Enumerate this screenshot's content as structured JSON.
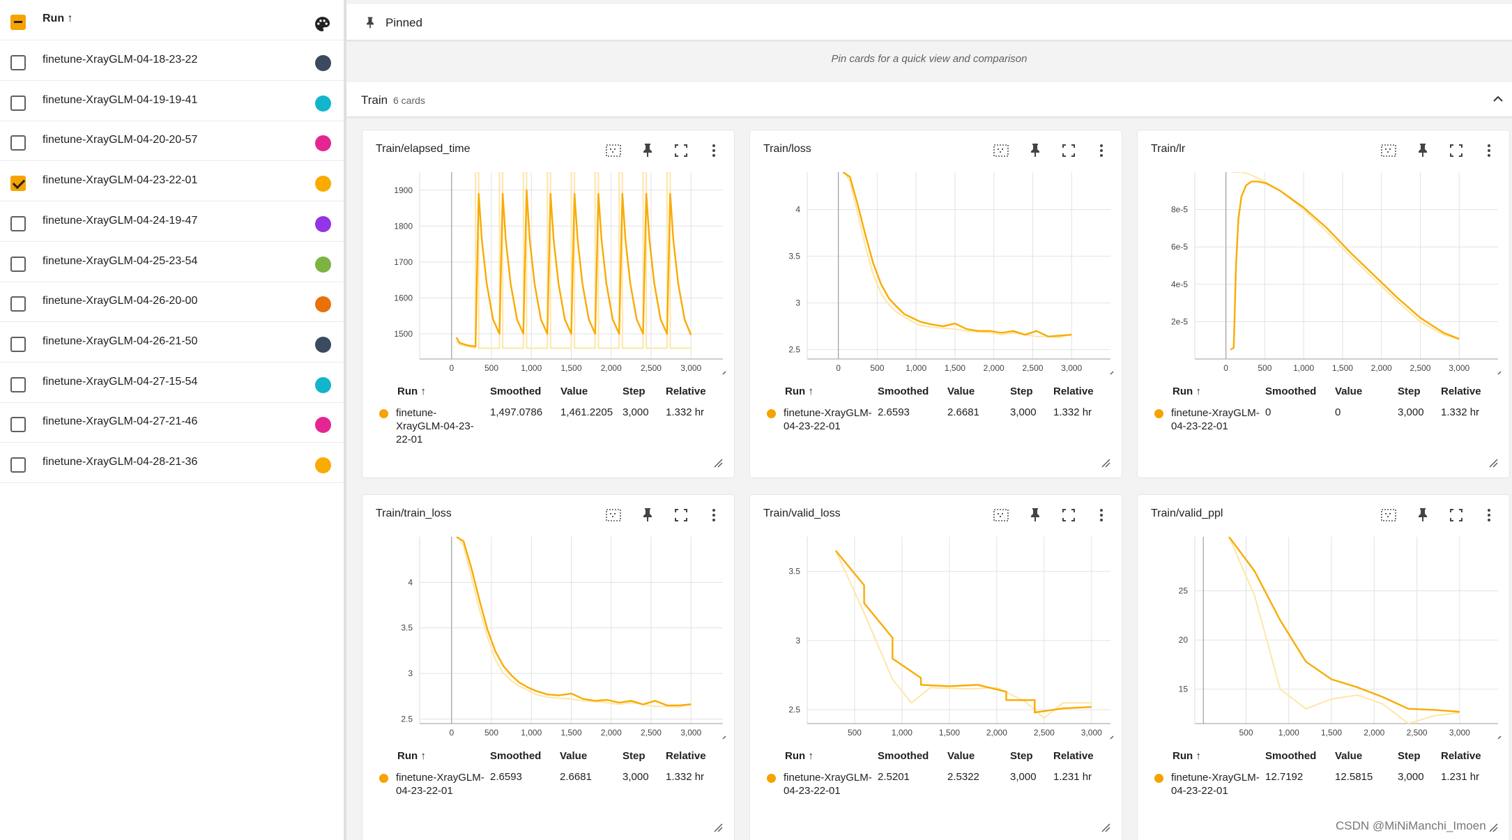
{
  "sidebar": {
    "header": {
      "label": "Run ↑"
    },
    "runs": [
      {
        "name": "finetune-XrayGLM-04-18-23-22",
        "color": "#3b4a5f",
        "checked": false
      },
      {
        "name": "finetune-XrayGLM-04-19-19-41",
        "color": "#12b5cb",
        "checked": false
      },
      {
        "name": "finetune-XrayGLM-04-20-20-57",
        "color": "#e52592",
        "checked": false
      },
      {
        "name": "finetune-XrayGLM-04-23-22-01",
        "color": "#f9ab00",
        "checked": true
      },
      {
        "name": "finetune-XrayGLM-04-24-19-47",
        "color": "#9334e6",
        "checked": false
      },
      {
        "name": "finetune-XrayGLM-04-25-23-54",
        "color": "#7cb342",
        "checked": false
      },
      {
        "name": "finetune-XrayGLM-04-26-20-00",
        "color": "#e8710a",
        "checked": false
      },
      {
        "name": "finetune-XrayGLM-04-26-21-50",
        "color": "#3b4a5f",
        "checked": false
      },
      {
        "name": "finetune-XrayGLM-04-27-15-54",
        "color": "#12b5cb",
        "checked": false
      },
      {
        "name": "finetune-XrayGLM-04-27-21-46",
        "color": "#e52592",
        "checked": false
      },
      {
        "name": "finetune-XrayGLM-04-28-21-36",
        "color": "#f9ab00",
        "checked": false
      }
    ]
  },
  "pinned": {
    "label": "Pinned",
    "hint": "Pin cards for a quick view and comparison"
  },
  "group": {
    "label": "Train",
    "count": "6 cards"
  },
  "table_headers": {
    "run": "Run ↑",
    "smoothed": "Smoothed",
    "value": "Value",
    "step": "Step",
    "relative": "Relative"
  },
  "cards": [
    {
      "title": "Train/elapsed_time",
      "run": "finetune-XrayGLM-04-23-22-01",
      "smoothed": "1,497.0786",
      "value": "1,461.2205",
      "step": "3,000",
      "relative": "1.332 hr"
    },
    {
      "title": "Train/loss",
      "run": "finetune-XrayGLM-04-23-22-01",
      "smoothed": "2.6593",
      "value": "2.6681",
      "step": "3,000",
      "relative": "1.332 hr"
    },
    {
      "title": "Train/lr",
      "run": "finetune-XrayGLM-04-23-22-01",
      "smoothed": "0",
      "value": "0",
      "step": "3,000",
      "relative": "1.332 hr"
    },
    {
      "title": "Train/train_loss",
      "run": "finetune-XrayGLM-04-23-22-01",
      "smoothed": "2.6593",
      "value": "2.6681",
      "step": "3,000",
      "relative": "1.332 hr"
    },
    {
      "title": "Train/valid_loss",
      "run": "finetune-XrayGLM-04-23-22-01",
      "smoothed": "2.5201",
      "value": "2.5322",
      "step": "3,000",
      "relative": "1.231 hr"
    },
    {
      "title": "Train/valid_ppl",
      "run": "finetune-XrayGLM-04-23-22-01",
      "smoothed": "12.7192",
      "value": "12.5815",
      "step": "3,000",
      "relative": "1.231 hr"
    }
  ],
  "chart_data": [
    {
      "type": "line",
      "title": "Train/elapsed_time",
      "xlim": [
        -400,
        3400
      ],
      "ylim": [
        1430,
        1950
      ],
      "xticks": [
        {
          "v": 0,
          "l": "0"
        },
        {
          "v": 500,
          "l": "500"
        },
        {
          "v": 1000,
          "l": "1,000"
        },
        {
          "v": 1500,
          "l": "1,500"
        },
        {
          "v": 2000,
          "l": "2,000"
        },
        {
          "v": 2500,
          "l": "2,500"
        },
        {
          "v": 3000,
          "l": "3,000"
        }
      ],
      "yticks": [
        {
          "v": 1500,
          "l": "1500"
        },
        {
          "v": 1600,
          "l": "1600"
        },
        {
          "v": 1700,
          "l": "1700"
        },
        {
          "v": 1800,
          "l": "1800"
        },
        {
          "v": 1900,
          "l": "1900"
        }
      ],
      "series": [
        {
          "role": "raw",
          "x": [
            60,
            100,
            300,
            300,
            340,
            340,
            600,
            600,
            640,
            640,
            900,
            900,
            940,
            940,
            1200,
            1200,
            1240,
            1240,
            1500,
            1500,
            1540,
            1540,
            1800,
            1800,
            1840,
            1840,
            2100,
            2100,
            2140,
            2140,
            2400,
            2400,
            2440,
            2440,
            2700,
            2700,
            2740,
            2740,
            3000
          ],
          "y": [
            1480,
            1470,
            1460,
            1950,
            1950,
            1460,
            1460,
            1950,
            1950,
            1460,
            1460,
            1950,
            1950,
            1460,
            1460,
            1950,
            1950,
            1460,
            1460,
            1950,
            1950,
            1460,
            1460,
            1950,
            1950,
            1460,
            1460,
            1950,
            1950,
            1460,
            1460,
            1950,
            1950,
            1460,
            1460,
            1950,
            1950,
            1460,
            1460
          ]
        },
        {
          "role": "smoothed",
          "x": [
            60,
            100,
            200,
            300,
            340,
            380,
            440,
            520,
            600,
            640,
            680,
            740,
            820,
            900,
            940,
            980,
            1040,
            1120,
            1200,
            1240,
            1280,
            1340,
            1420,
            1500,
            1540,
            1580,
            1640,
            1720,
            1800,
            1840,
            1880,
            1940,
            2020,
            2100,
            2140,
            2180,
            2240,
            2320,
            2400,
            2440,
            2480,
            2540,
            2620,
            2700,
            2740,
            2780,
            2840,
            2920,
            3000
          ],
          "y": [
            1490,
            1475,
            1468,
            1465,
            1890,
            1760,
            1640,
            1540,
            1500,
            1890,
            1760,
            1640,
            1540,
            1500,
            1900,
            1760,
            1640,
            1540,
            1500,
            1890,
            1760,
            1640,
            1540,
            1500,
            1890,
            1760,
            1640,
            1540,
            1500,
            1890,
            1760,
            1640,
            1540,
            1500,
            1890,
            1760,
            1640,
            1540,
            1500,
            1890,
            1760,
            1640,
            1540,
            1500,
            1890,
            1760,
            1640,
            1540,
            1497
          ]
        }
      ]
    },
    {
      "type": "line",
      "title": "Train/loss",
      "xlim": [
        -400,
        3500
      ],
      "ylim": [
        2.4,
        4.4
      ],
      "xticks": [
        {
          "v": 0,
          "l": "0"
        },
        {
          "v": 500,
          "l": "500"
        },
        {
          "v": 1000,
          "l": "1,000"
        },
        {
          "v": 1500,
          "l": "1,500"
        },
        {
          "v": 2000,
          "l": "2,000"
        },
        {
          "v": 2500,
          "l": "2,500"
        },
        {
          "v": 3000,
          "l": "3,000"
        }
      ],
      "yticks": [
        {
          "v": 2.5,
          "l": "2.5"
        },
        {
          "v": 3,
          "l": "3"
        },
        {
          "v": 3.5,
          "l": "3.5"
        },
        {
          "v": 4,
          "l": "4"
        }
      ],
      "series": [
        {
          "role": "raw",
          "x": [
            80,
            150,
            250,
            350,
            450,
            550,
            650,
            750,
            850,
            950,
            1050,
            1200,
            1350,
            1500,
            1650,
            1800,
            1950,
            2100,
            2250,
            2400,
            2550,
            2700,
            2850,
            3000
          ],
          "y": [
            4.4,
            4.3,
            3.95,
            3.6,
            3.3,
            3.1,
            2.98,
            2.9,
            2.85,
            2.8,
            2.76,
            2.74,
            2.73,
            2.72,
            2.7,
            2.69,
            2.68,
            2.66,
            2.68,
            2.66,
            2.64,
            2.64,
            2.63,
            2.67
          ]
        },
        {
          "role": "smoothed",
          "x": [
            60,
            150,
            250,
            350,
            450,
            550,
            650,
            750,
            850,
            950,
            1050,
            1200,
            1350,
            1500,
            1650,
            1800,
            1950,
            2100,
            2250,
            2400,
            2550,
            2700,
            2850,
            3000
          ],
          "y": [
            4.4,
            4.35,
            4.05,
            3.72,
            3.42,
            3.2,
            3.05,
            2.96,
            2.88,
            2.84,
            2.8,
            2.77,
            2.75,
            2.78,
            2.72,
            2.7,
            2.7,
            2.68,
            2.7,
            2.66,
            2.7,
            2.64,
            2.65,
            2.66
          ]
        }
      ]
    },
    {
      "type": "line",
      "title": "Train/lr",
      "xlim": [
        -400,
        3500
      ],
      "ylim": [
        0,
        0.0001
      ],
      "xticks": [
        {
          "v": 0,
          "l": "0"
        },
        {
          "v": 500,
          "l": "500"
        },
        {
          "v": 1000,
          "l": "1,000"
        },
        {
          "v": 1500,
          "l": "1,500"
        },
        {
          "v": 2000,
          "l": "2,000"
        },
        {
          "v": 2500,
          "l": "2,500"
        },
        {
          "v": 3000,
          "l": "3,000"
        }
      ],
      "yticks": [
        {
          "v": 2e-05,
          "l": "2e-5"
        },
        {
          "v": 4e-05,
          "l": "4e-5"
        },
        {
          "v": 6e-05,
          "l": "6e-5"
        },
        {
          "v": 8e-05,
          "l": "8e-5"
        }
      ],
      "series": [
        {
          "role": "raw",
          "x": [
            80,
            120,
            200,
            300,
            500,
            700,
            1000,
            1300,
            1600,
            1900,
            2200,
            2500,
            2800,
            3000
          ],
          "y": [
            0.0001,
            0.0001,
            0.0001,
            9.9e-05,
            9.5e-05,
            9e-05,
            8e-05,
            6.8e-05,
            5.5e-05,
            4.3e-05,
            3.1e-05,
            2e-05,
            1.3e-05,
            1.05e-05
          ]
        },
        {
          "role": "smoothed",
          "x": [
            60,
            100,
            130,
            160,
            200,
            260,
            330,
            420,
            520,
            700,
            1000,
            1300,
            1600,
            1900,
            2200,
            2500,
            2800,
            3000
          ],
          "y": [
            5e-06,
            6e-06,
            5e-05,
            7.5e-05,
            8.7e-05,
            9.3e-05,
            9.5e-05,
            9.5e-05,
            9.4e-05,
            9e-05,
            8.1e-05,
            7e-05,
            5.7e-05,
            4.5e-05,
            3.3e-05,
            2.2e-05,
            1.4e-05,
            1.08e-05
          ]
        }
      ]
    },
    {
      "type": "line",
      "title": "Train/train_loss",
      "xlim": [
        -400,
        3400
      ],
      "ylim": [
        2.45,
        4.5
      ],
      "xticks": [
        {
          "v": 0,
          "l": "0"
        },
        {
          "v": 500,
          "l": "500"
        },
        {
          "v": 1000,
          "l": "1,000"
        },
        {
          "v": 1500,
          "l": "1,500"
        },
        {
          "v": 2000,
          "l": "2,000"
        },
        {
          "v": 2500,
          "l": "2,500"
        },
        {
          "v": 3000,
          "l": "3,000"
        }
      ],
      "yticks": [
        {
          "v": 2.5,
          "l": "2.5"
        },
        {
          "v": 3,
          "l": "3"
        },
        {
          "v": 3.5,
          "l": "3.5"
        },
        {
          "v": 4,
          "l": "4"
        }
      ],
      "series": [
        {
          "role": "raw",
          "x": [
            80,
            150,
            250,
            350,
            450,
            550,
            650,
            750,
            850,
            950,
            1050,
            1200,
            1350,
            1500,
            1650,
            1800,
            1950,
            2100,
            2250,
            2400,
            2550,
            2700,
            2850,
            3000
          ],
          "y": [
            4.5,
            4.4,
            4.05,
            3.7,
            3.4,
            3.15,
            3.0,
            2.92,
            2.86,
            2.82,
            2.77,
            2.74,
            2.73,
            2.72,
            2.7,
            2.69,
            2.68,
            2.66,
            2.68,
            2.66,
            2.64,
            2.64,
            2.63,
            2.67
          ]
        },
        {
          "role": "smoothed",
          "x": [
            60,
            150,
            250,
            350,
            450,
            550,
            650,
            750,
            850,
            950,
            1050,
            1200,
            1350,
            1500,
            1650,
            1800,
            1950,
            2100,
            2250,
            2400,
            2550,
            2700,
            2850,
            3000
          ],
          "y": [
            4.5,
            4.45,
            4.15,
            3.8,
            3.48,
            3.24,
            3.08,
            2.98,
            2.9,
            2.85,
            2.81,
            2.77,
            2.76,
            2.78,
            2.72,
            2.7,
            2.71,
            2.68,
            2.7,
            2.66,
            2.7,
            2.65,
            2.65,
            2.66
          ]
        }
      ]
    },
    {
      "type": "line",
      "title": "Train/valid_loss",
      "xlim": [
        0,
        3200
      ],
      "ylim": [
        2.4,
        3.75
      ],
      "xticks": [
        {
          "v": 500,
          "l": "500"
        },
        {
          "v": 1000,
          "l": "1,000"
        },
        {
          "v": 1500,
          "l": "1,500"
        },
        {
          "v": 2000,
          "l": "2,000"
        },
        {
          "v": 2500,
          "l": "2,500"
        },
        {
          "v": 3000,
          "l": "3,000"
        }
      ],
      "yticks": [
        {
          "v": 2.5,
          "l": "2.5"
        },
        {
          "v": 3,
          "l": "3"
        },
        {
          "v": 3.5,
          "l": "3.5"
        }
      ],
      "series": [
        {
          "role": "raw",
          "x": [
            300,
            600,
            900,
            1100,
            1300,
            1700,
            2000,
            2300,
            2500,
            2700,
            3000
          ],
          "y": [
            3.65,
            3.2,
            2.72,
            2.55,
            2.66,
            2.65,
            2.66,
            2.56,
            2.44,
            2.55,
            2.55
          ]
        },
        {
          "role": "smoothed",
          "x": [
            300,
            600,
            600,
            900,
            900,
            1200,
            1200,
            1500,
            1800,
            2100,
            2100,
            2400,
            2400,
            2700,
            3000
          ],
          "y": [
            3.65,
            3.4,
            3.27,
            3.02,
            2.87,
            2.73,
            2.68,
            2.67,
            2.68,
            2.63,
            2.57,
            2.57,
            2.48,
            2.51,
            2.52
          ]
        }
      ]
    },
    {
      "type": "line",
      "title": "Train/valid_ppl",
      "xlim": [
        -100,
        3450
      ],
      "ylim": [
        11.5,
        30.5
      ],
      "xticks": [
        {
          "v": 500,
          "l": "500"
        },
        {
          "v": 1000,
          "l": "1,000"
        },
        {
          "v": 1500,
          "l": "1,500"
        },
        {
          "v": 2000,
          "l": "2,000"
        },
        {
          "v": 2500,
          "l": "2,500"
        },
        {
          "v": 3000,
          "l": "3,000"
        }
      ],
      "yticks": [
        {
          "v": 15,
          "l": "15"
        },
        {
          "v": 20,
          "l": "20"
        },
        {
          "v": 25,
          "l": "25"
        }
      ],
      "series": [
        {
          "role": "raw",
          "x": [
            300,
            600,
            900,
            1200,
            1500,
            1800,
            2100,
            2400,
            2700,
            3000
          ],
          "y": [
            30.5,
            24.5,
            15.0,
            13.0,
            14.0,
            14.4,
            13.5,
            11.5,
            12.3,
            12.6
          ]
        },
        {
          "role": "smoothed",
          "x": [
            300,
            600,
            900,
            1200,
            1500,
            1800,
            2100,
            2400,
            2700,
            3000
          ],
          "y": [
            30.5,
            27.0,
            22.0,
            17.8,
            16.0,
            15.2,
            14.2,
            13.0,
            12.9,
            12.7
          ]
        }
      ]
    }
  ],
  "colors": {
    "accent": "#f9ab00",
    "raw_line": "#fde6a8",
    "grid": "#e2e2e2"
  },
  "watermark": "CSDN @MiNiManchi_Imoen"
}
